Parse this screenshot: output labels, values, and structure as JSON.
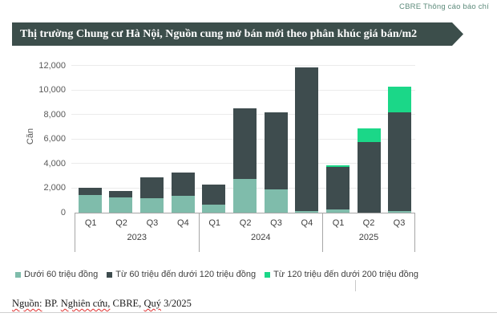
{
  "header": {
    "press_note": "CBRE Thông cáo báo chí"
  },
  "banner": {
    "title": "Thị trường Chung cư Hà Nội, Nguồn cung mở bán mới theo phân khúc giá bán/m2",
    "background_color": "#3c4e4b",
    "text_color": "#ffffff"
  },
  "chart_data": {
    "type": "bar",
    "stacked": true,
    "title": "Thị trường Chung cư Hà Nội, Nguồn cung mở bán mới theo phân khúc giá bán/m2",
    "ylabel": "Căn",
    "xlabel": "",
    "ylim": [
      0,
      12000
    ],
    "grid": true,
    "legend_position": "bottom",
    "ytick_values": [
      0,
      2000,
      4000,
      6000,
      8000,
      10000,
      12000
    ],
    "ytick_labels": [
      "0",
      "2,000",
      "4,000",
      "6,000",
      "8,000",
      "10,000",
      "12,000"
    ],
    "groups": [
      {
        "year": "2023",
        "quarters": [
          "Q1",
          "Q2",
          "Q3",
          "Q4"
        ]
      },
      {
        "year": "2024",
        "quarters": [
          "Q1",
          "Q2",
          "Q3",
          "Q4"
        ]
      },
      {
        "year": "2025",
        "quarters": [
          "Q1",
          "Q2",
          "Q3"
        ]
      }
    ],
    "categories": [
      "Q1 2023",
      "Q2 2023",
      "Q3 2023",
      "Q4 2023",
      "Q1 2024",
      "Q2 2024",
      "Q3 2024",
      "Q4 2024",
      "Q1 2025",
      "Q2 2025",
      "Q3 2025"
    ],
    "series": [
      {
        "name": "Dưới 60 triệu đồng",
        "color": "#7fbcab",
        "values": [
          1450,
          1250,
          1150,
          1400,
          650,
          2750,
          1900,
          100,
          280,
          0,
          150
        ]
      },
      {
        "name": "Từ 60 triệu đến dưới 120 triệu đồng",
        "color": "#3e4c4e",
        "values": [
          600,
          500,
          1750,
          1900,
          1650,
          5750,
          6300,
          11750,
          3450,
          5800,
          8050
        ]
      },
      {
        "name": "Từ 120 triệu đến dưới 200 triệu đồng",
        "color": "#1bd788",
        "values": [
          0,
          0,
          0,
          0,
          0,
          0,
          0,
          0,
          170,
          1100,
          2100
        ]
      }
    ],
    "totals": [
      2050,
      1750,
      2900,
      3300,
      2300,
      8500,
      8200,
      11850,
      3900,
      6900,
      10300
    ]
  },
  "footer": {
    "source_parts": [
      {
        "text": "Nguồn:",
        "misspelled": true
      },
      {
        "text": " BP. ",
        "misspelled": false
      },
      {
        "text": "Nghiên cứu,",
        "misspelled": true
      },
      {
        "text": " CBRE, ",
        "misspelled": false
      },
      {
        "text": "Quý",
        "misspelled": true
      },
      {
        "text": " 3/2025",
        "misspelled": false
      }
    ]
  }
}
